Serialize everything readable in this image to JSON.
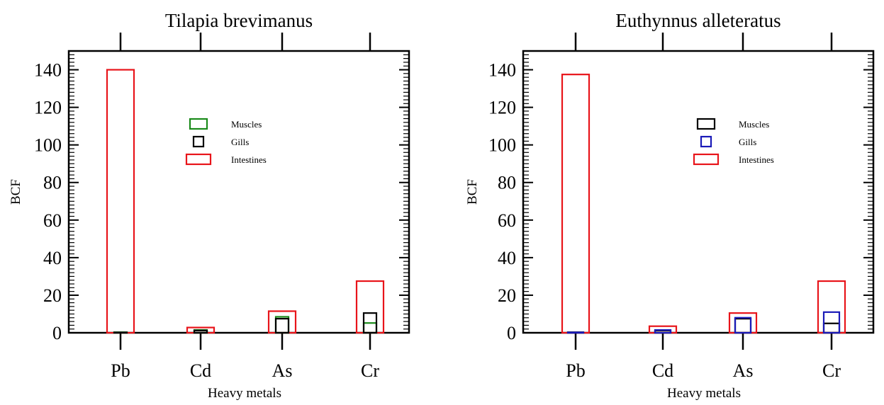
{
  "chart_data": [
    {
      "type": "bar",
      "title": "Tilapia brevimanus",
      "xlabel": "Heavy metals",
      "ylabel": "BCF",
      "ylim": [
        0,
        150
      ],
      "yticks": [
        0,
        20,
        40,
        60,
        80,
        100,
        120,
        140
      ],
      "categories": [
        "Pb",
        "Cd",
        "As",
        "Cr"
      ],
      "legend_position": "upper-center",
      "series": [
        {
          "name": "Muscles",
          "color": "#1a8a1a",
          "values": [
            0.3,
            1.5,
            8.5,
            5.2
          ]
        },
        {
          "name": "Gills",
          "color": "#000000",
          "values": [
            0.2,
            1.2,
            7.5,
            10.5
          ]
        },
        {
          "name": "Intestines",
          "color": "#e8141a",
          "values": [
            140,
            2.8,
            11.5,
            27.5
          ]
        }
      ]
    },
    {
      "type": "bar",
      "title": "Euthynnus alleteratus",
      "xlabel": "Heavy metals",
      "ylabel": "BCF",
      "ylim": [
        0,
        150
      ],
      "yticks": [
        0,
        20,
        40,
        60,
        80,
        100,
        120,
        140
      ],
      "categories": [
        "Pb",
        "Cd",
        "As",
        "Cr"
      ],
      "legend_position": "upper-center",
      "series": [
        {
          "name": "Muscles",
          "color": "#000000",
          "values": [
            0.3,
            1.2,
            7.5,
            5.0
          ]
        },
        {
          "name": "Gills",
          "color": "#1a1ab8",
          "values": [
            0.2,
            1.5,
            8.0,
            11.0
          ]
        },
        {
          "name": "Intestines",
          "color": "#e8141a",
          "values": [
            137.5,
            3.5,
            10.5,
            27.5
          ]
        }
      ]
    }
  ]
}
